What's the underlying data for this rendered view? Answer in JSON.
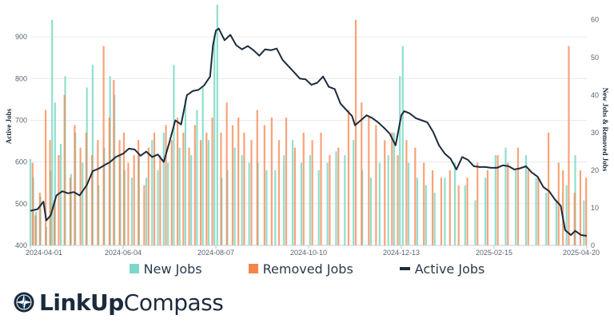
{
  "chart_data": {
    "type": "bar+line",
    "title": "",
    "x_range": [
      "2024-04-01",
      "2025-04-20"
    ],
    "x_ticks": [
      "2024-04-01",
      "2024-06-04",
      "2024-08-07",
      "2024-10-10",
      "2024-12-13",
      "2025-02-15",
      "2025-04-20"
    ],
    "y_left": {
      "label": "Active Jobs",
      "ticks": [
        400,
        500,
        600,
        700,
        800,
        900
      ],
      "range": [
        400,
        950
      ]
    },
    "y_right": {
      "label": "New Jobs & Removed Jobs",
      "ticks": [
        0,
        10,
        20,
        30,
        40,
        50,
        60
      ],
      "range": [
        0,
        61
      ]
    },
    "grid": true,
    "series": [
      {
        "name": "New Jobs",
        "type": "bar",
        "axis": "right",
        "color": "#7dd9c5"
      },
      {
        "name": "Removed Jobs",
        "type": "bar",
        "axis": "right",
        "color": "#f5844c"
      },
      {
        "name": "Active Jobs",
        "type": "line",
        "axis": "left",
        "color": "#1d2b3c",
        "points": [
          [
            "2024-04-01",
            483
          ],
          [
            "2024-04-06",
            487
          ],
          [
            "2024-04-10",
            505
          ],
          [
            "2024-04-12",
            460
          ],
          [
            "2024-04-15",
            472
          ],
          [
            "2024-04-19",
            520
          ],
          [
            "2024-04-23",
            530
          ],
          [
            "2024-04-27",
            525
          ],
          [
            "2024-05-01",
            528
          ],
          [
            "2024-05-05",
            520
          ],
          [
            "2024-05-10",
            545
          ],
          [
            "2024-05-14",
            578
          ],
          [
            "2024-05-18",
            584
          ],
          [
            "2024-05-22",
            592
          ],
          [
            "2024-05-26",
            600
          ],
          [
            "2024-05-30",
            612
          ],
          [
            "2024-06-04",
            620
          ],
          [
            "2024-06-08",
            632
          ],
          [
            "2024-06-12",
            630
          ],
          [
            "2024-06-16",
            615
          ],
          [
            "2024-06-20",
            625
          ],
          [
            "2024-06-24",
            612
          ],
          [
            "2024-06-28",
            618
          ],
          [
            "2024-07-02",
            600
          ],
          [
            "2024-07-06",
            648
          ],
          [
            "2024-07-10",
            700
          ],
          [
            "2024-07-14",
            690
          ],
          [
            "2024-07-18",
            760
          ],
          [
            "2024-07-22",
            770
          ],
          [
            "2024-07-26",
            773
          ],
          [
            "2024-07-30",
            784
          ],
          [
            "2024-08-03",
            805
          ],
          [
            "2024-08-05",
            880
          ],
          [
            "2024-08-07",
            915
          ],
          [
            "2024-08-09",
            920
          ],
          [
            "2024-08-13",
            892
          ],
          [
            "2024-08-17",
            905
          ],
          [
            "2024-08-21",
            880
          ],
          [
            "2024-08-25",
            870
          ],
          [
            "2024-08-29",
            878
          ],
          [
            "2024-09-02",
            868
          ],
          [
            "2024-09-06",
            855
          ],
          [
            "2024-09-10",
            870
          ],
          [
            "2024-09-14",
            868
          ],
          [
            "2024-09-18",
            872
          ],
          [
            "2024-09-22",
            845
          ],
          [
            "2024-09-26",
            830
          ],
          [
            "2024-09-30",
            815
          ],
          [
            "2024-10-04",
            800
          ],
          [
            "2024-10-08",
            798
          ],
          [
            "2024-10-12",
            785
          ],
          [
            "2024-10-16",
            790
          ],
          [
            "2024-10-20",
            805
          ],
          [
            "2024-10-24",
            780
          ],
          [
            "2024-10-28",
            775
          ],
          [
            "2024-11-01",
            740
          ],
          [
            "2024-11-05",
            725
          ],
          [
            "2024-11-09",
            710
          ],
          [
            "2024-11-11",
            688
          ],
          [
            "2024-11-15",
            700
          ],
          [
            "2024-11-19",
            712
          ],
          [
            "2024-11-23",
            705
          ],
          [
            "2024-11-27",
            695
          ],
          [
            "2024-12-01",
            682
          ],
          [
            "2024-12-05",
            668
          ],
          [
            "2024-12-09",
            640
          ],
          [
            "2024-12-13",
            712
          ],
          [
            "2024-12-15",
            722
          ],
          [
            "2024-12-19",
            716
          ],
          [
            "2024-12-23",
            705
          ],
          [
            "2024-12-27",
            700
          ],
          [
            "2024-12-31",
            695
          ],
          [
            "2025-01-04",
            672
          ],
          [
            "2025-01-08",
            640
          ],
          [
            "2025-01-12",
            620
          ],
          [
            "2025-01-16",
            608
          ],
          [
            "2025-01-20",
            582
          ],
          [
            "2025-01-24",
            612
          ],
          [
            "2025-01-28",
            605
          ],
          [
            "2025-02-01",
            590
          ],
          [
            "2025-02-05",
            588
          ],
          [
            "2025-02-09",
            588
          ],
          [
            "2025-02-13",
            586
          ],
          [
            "2025-02-17",
            586
          ],
          [
            "2025-02-21",
            592
          ],
          [
            "2025-02-25",
            590
          ],
          [
            "2025-03-01",
            582
          ],
          [
            "2025-03-05",
            585
          ],
          [
            "2025-03-09",
            590
          ],
          [
            "2025-03-13",
            575
          ],
          [
            "2025-03-17",
            565
          ],
          [
            "2025-03-21",
            540
          ],
          [
            "2025-03-25",
            530
          ],
          [
            "2025-03-29",
            510
          ],
          [
            "2025-04-02",
            495
          ],
          [
            "2025-04-05",
            437
          ],
          [
            "2025-04-09",
            425
          ],
          [
            "2025-04-12",
            435
          ],
          [
            "2025-04-16",
            425
          ],
          [
            "2025-04-20",
            423
          ]
        ]
      }
    ],
    "bars": {
      "new": [
        [
          "2024-04-01",
          23
        ],
        [
          "2024-04-03",
          18
        ],
        [
          "2024-04-05",
          9
        ],
        [
          "2024-04-08",
          13
        ],
        [
          "2024-04-12",
          5
        ],
        [
          "2024-04-15",
          20
        ],
        [
          "2024-04-16",
          60
        ],
        [
          "2024-04-18",
          38
        ],
        [
          "2024-04-22",
          27
        ],
        [
          "2024-04-25",
          45
        ],
        [
          "2024-04-29",
          19
        ],
        [
          "2024-05-02",
          30
        ],
        [
          "2024-05-07",
          22
        ],
        [
          "2024-05-10",
          42
        ],
        [
          "2024-05-14",
          48
        ],
        [
          "2024-05-18",
          16
        ],
        [
          "2024-05-22",
          26
        ],
        [
          "2024-05-26",
          45
        ],
        [
          "2024-05-29",
          40
        ],
        [
          "2024-06-02",
          24
        ],
        [
          "2024-06-05",
          20
        ],
        [
          "2024-06-10",
          18
        ],
        [
          "2024-06-15",
          24
        ],
        [
          "2024-06-20",
          18
        ],
        [
          "2024-06-24",
          28
        ],
        [
          "2024-06-28",
          20
        ],
        [
          "2024-07-02",
          30
        ],
        [
          "2024-07-05",
          22
        ],
        [
          "2024-07-09",
          48
        ],
        [
          "2024-07-13",
          26
        ],
        [
          "2024-07-17",
          39
        ],
        [
          "2024-07-21",
          24
        ],
        [
          "2024-07-25",
          36
        ],
        [
          "2024-07-29",
          42
        ],
        [
          "2024-08-02",
          28
        ],
        [
          "2024-08-06",
          56
        ],
        [
          "2024-08-08",
          64
        ],
        [
          "2024-08-11",
          18
        ],
        [
          "2024-08-15",
          20
        ],
        [
          "2024-08-20",
          26
        ],
        [
          "2024-08-25",
          24
        ],
        [
          "2024-08-30",
          22
        ],
        [
          "2024-09-05",
          22
        ],
        [
          "2024-09-11",
          20
        ],
        [
          "2024-09-17",
          20
        ],
        [
          "2024-09-23",
          24
        ],
        [
          "2024-09-29",
          28
        ],
        [
          "2024-10-05",
          22
        ],
        [
          "2024-10-11",
          24
        ],
        [
          "2024-10-17",
          20
        ],
        [
          "2024-10-23",
          22
        ],
        [
          "2024-10-29",
          25
        ],
        [
          "2024-11-04",
          24
        ],
        [
          "2024-11-10",
          28
        ],
        [
          "2024-11-16",
          20
        ],
        [
          "2024-11-22",
          18
        ],
        [
          "2024-11-28",
          22
        ],
        [
          "2024-12-04",
          24
        ],
        [
          "2024-12-08",
          30
        ],
        [
          "2024-12-12",
          45
        ],
        [
          "2024-12-14",
          53
        ],
        [
          "2024-12-18",
          22
        ],
        [
          "2024-12-24",
          18
        ],
        [
          "2024-12-30",
          16
        ],
        [
          "2025-01-05",
          14
        ],
        [
          "2025-01-12",
          18
        ],
        [
          "2025-01-19",
          22
        ],
        [
          "2025-01-26",
          16
        ],
        [
          "2025-02-02",
          12
        ],
        [
          "2025-02-09",
          18
        ],
        [
          "2025-02-16",
          24
        ],
        [
          "2025-02-23",
          26
        ],
        [
          "2025-03-02",
          20
        ],
        [
          "2025-03-09",
          24
        ],
        [
          "2025-03-16",
          18
        ],
        [
          "2025-03-23",
          14
        ],
        [
          "2025-03-30",
          12
        ],
        [
          "2025-04-06",
          16
        ],
        [
          "2025-04-12",
          24
        ],
        [
          "2025-04-18",
          12
        ]
      ],
      "removed": [
        [
          "2024-04-02",
          22
        ],
        [
          "2024-04-04",
          8
        ],
        [
          "2024-04-07",
          14
        ],
        [
          "2024-04-11",
          36
        ],
        [
          "2024-04-14",
          28
        ],
        [
          "2024-04-17",
          12
        ],
        [
          "2024-04-20",
          24
        ],
        [
          "2024-04-24",
          40
        ],
        [
          "2024-04-28",
          18
        ],
        [
          "2024-05-01",
          32
        ],
        [
          "2024-05-05",
          26
        ],
        [
          "2024-05-09",
          30
        ],
        [
          "2024-05-13",
          24
        ],
        [
          "2024-05-17",
          28
        ],
        [
          "2024-05-21",
          53
        ],
        [
          "2024-05-25",
          34
        ],
        [
          "2024-05-28",
          44
        ],
        [
          "2024-06-01",
          28
        ],
        [
          "2024-06-04",
          30
        ],
        [
          "2024-06-07",
          22
        ],
        [
          "2024-06-11",
          24
        ],
        [
          "2024-06-14",
          28
        ],
        [
          "2024-06-18",
          16
        ],
        [
          "2024-06-21",
          26
        ],
        [
          "2024-06-25",
          30
        ],
        [
          "2024-06-29",
          24
        ],
        [
          "2024-07-03",
          32
        ],
        [
          "2024-07-07",
          28
        ],
        [
          "2024-07-11",
          34
        ],
        [
          "2024-07-15",
          30
        ],
        [
          "2024-07-19",
          26
        ],
        [
          "2024-07-23",
          32
        ],
        [
          "2024-07-27",
          28
        ],
        [
          "2024-07-31",
          30
        ],
        [
          "2024-08-04",
          34
        ],
        [
          "2024-08-10",
          30
        ],
        [
          "2024-08-14",
          38
        ],
        [
          "2024-08-18",
          32
        ],
        [
          "2024-08-22",
          34
        ],
        [
          "2024-08-26",
          30
        ],
        [
          "2024-08-31",
          28
        ],
        [
          "2024-09-04",
          36
        ],
        [
          "2024-09-09",
          32
        ],
        [
          "2024-09-14",
          34
        ],
        [
          "2024-09-19",
          28
        ],
        [
          "2024-09-24",
          34
        ],
        [
          "2024-09-30",
          26
        ],
        [
          "2024-10-06",
          30
        ],
        [
          "2024-10-12",
          28
        ],
        [
          "2024-10-18",
          30
        ],
        [
          "2024-10-24",
          24
        ],
        [
          "2024-10-30",
          26
        ],
        [
          "2024-11-06",
          36
        ],
        [
          "2024-11-11",
          60
        ],
        [
          "2024-11-15",
          38
        ],
        [
          "2024-11-20",
          34
        ],
        [
          "2024-11-25",
          32
        ],
        [
          "2024-12-01",
          28
        ],
        [
          "2024-12-06",
          30
        ],
        [
          "2024-12-10",
          24
        ],
        [
          "2024-12-16",
          28
        ],
        [
          "2024-12-22",
          26
        ],
        [
          "2024-12-28",
          22
        ],
        [
          "2025-01-03",
          20
        ],
        [
          "2025-01-09",
          18
        ],
        [
          "2025-01-15",
          20
        ],
        [
          "2025-01-21",
          16
        ],
        [
          "2025-01-27",
          18
        ],
        [
          "2025-02-03",
          22
        ],
        [
          "2025-02-10",
          20
        ],
        [
          "2025-02-17",
          24
        ],
        [
          "2025-02-24",
          22
        ],
        [
          "2025-03-03",
          26
        ],
        [
          "2025-03-10",
          20
        ],
        [
          "2025-03-17",
          18
        ],
        [
          "2025-03-24",
          30
        ],
        [
          "2025-03-31",
          22
        ],
        [
          "2025-04-03",
          20
        ],
        [
          "2025-04-07",
          53
        ],
        [
          "2025-04-11",
          14
        ],
        [
          "2025-04-15",
          20
        ],
        [
          "2025-04-19",
          18
        ]
      ]
    },
    "legend": {
      "position": "bottom"
    }
  },
  "legend": {
    "new_jobs": "New Jobs",
    "removed_jobs": "Removed Jobs",
    "active_jobs": "Active Jobs"
  },
  "brand": {
    "part1": "LinkUp",
    "part2": "Compass"
  },
  "colors": {
    "new": "#7dd9c5",
    "removed": "#f5844c",
    "active": "#1d2b3c",
    "grid": "#e6e9ee",
    "brand": "#1b2b3e"
  },
  "icons": {
    "brand_icon": "compass-icon"
  }
}
